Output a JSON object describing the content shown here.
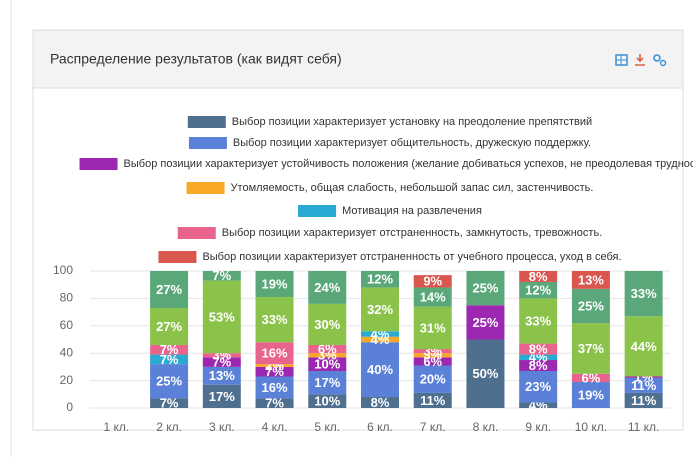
{
  "chart_data": {
    "type": "stacked_bar",
    "title": "Распределение результатов (как видят себя)",
    "categories": [
      "1 кл.",
      "2 кл.",
      "3 кл.",
      "4 кл.",
      "5 кл.",
      "6 кл.",
      "7 кл.",
      "8 кл.",
      "9 кл.",
      "10 кл.",
      "11 кл."
    ],
    "ylim": [
      0,
      100
    ],
    "yticks": [
      0,
      20,
      40,
      60,
      80,
      100
    ],
    "grid": true,
    "series": [
      {
        "name": "Выбор позиции характеризует установку на преодоление препятствий",
        "color": "#4f6f8f",
        "values": [
          null,
          7,
          17,
          7,
          10,
          8,
          11,
          50,
          4,
          null,
          11
        ],
        "value_labels": [
          null,
          "7%",
          "17%",
          "7%",
          "10%",
          "8%",
          "11%",
          "50%",
          "4%",
          null,
          "11%"
        ]
      },
      {
        "name": "Выбор позиции характеризует общительность, дружескую поддержку.",
        "color": "#5b80d8",
        "values": [
          null,
          25,
          13,
          16,
          17,
          40,
          20,
          null,
          23,
          19,
          11
        ],
        "value_labels": [
          null,
          "25%",
          "13%",
          "16%",
          "17%",
          "40%",
          "20%",
          null,
          "23%",
          "19%",
          "11%"
        ]
      },
      {
        "name": "Выбор позиции характеризует устойчивость положения (желание добиваться успехов, не преодолевая трудност",
        "color": "#9c27b0",
        "values": [
          null,
          null,
          7,
          7,
          10,
          null,
          6,
          25,
          8,
          null,
          1
        ],
        "value_labels": [
          null,
          null,
          "7%",
          "7%",
          "10%",
          null,
          "6%",
          "25%",
          "8%",
          null,
          "1%"
        ]
      },
      {
        "name": "Утомляемость, общая слабость, небольшой запас сил, застенчивость.",
        "color": "#f9a825",
        "values": [
          null,
          null,
          null,
          2,
          3,
          4,
          3,
          null,
          null,
          null,
          null
        ],
        "value_labels": [
          null,
          null,
          null,
          "2%",
          "3%",
          "4%",
          "3%",
          null,
          null,
          null,
          null
        ]
      },
      {
        "name": "Мотивация на развлечения",
        "color": "#2aa9d2",
        "values": [
          null,
          7,
          null,
          null,
          null,
          4,
          null,
          null,
          4,
          null,
          null
        ],
        "value_labels": [
          null,
          "7%",
          null,
          null,
          null,
          "4%",
          null,
          null,
          "4%",
          null,
          null
        ]
      },
      {
        "name": "Выбор позиции характеризует отстраненность, замкнутость, тревожность.",
        "color": "#e8648c",
        "values": [
          null,
          7,
          3,
          16,
          6,
          null,
          3,
          null,
          8,
          6,
          null
        ],
        "value_labels": [
          null,
          "7%",
          "3%",
          "16%",
          "6%",
          null,
          "3%",
          null,
          "8%",
          "6%",
          null
        ]
      },
      {
        "color": "#8bc34a",
        "values": [
          null,
          27,
          53,
          33,
          30,
          32,
          31,
          null,
          33,
          37,
          44
        ],
        "value_labels": [
          null,
          "27%",
          "53%",
          "33%",
          "30%",
          "32%",
          "31%",
          null,
          "33%",
          "37%",
          "44%"
        ]
      },
      {
        "color": "#5aa87a",
        "values": [
          null,
          27,
          7,
          19,
          24,
          12,
          14,
          25,
          12,
          25,
          33
        ],
        "value_labels": [
          null,
          "27%",
          "7%",
          "19%",
          "24%",
          "12%",
          "14%",
          "25%",
          "12%",
          "25%",
          "33%"
        ]
      },
      {
        "name": "Выбор позиции характеризует отстраненность от учебного процесса, уход в себя.",
        "color": "#d9574f",
        "values": [
          null,
          null,
          null,
          null,
          null,
          null,
          9,
          null,
          8,
          13,
          null
        ],
        "value_labels": [
          null,
          null,
          null,
          null,
          null,
          null,
          "9%",
          null,
          "8%",
          "13%",
          null
        ]
      }
    ]
  }
}
